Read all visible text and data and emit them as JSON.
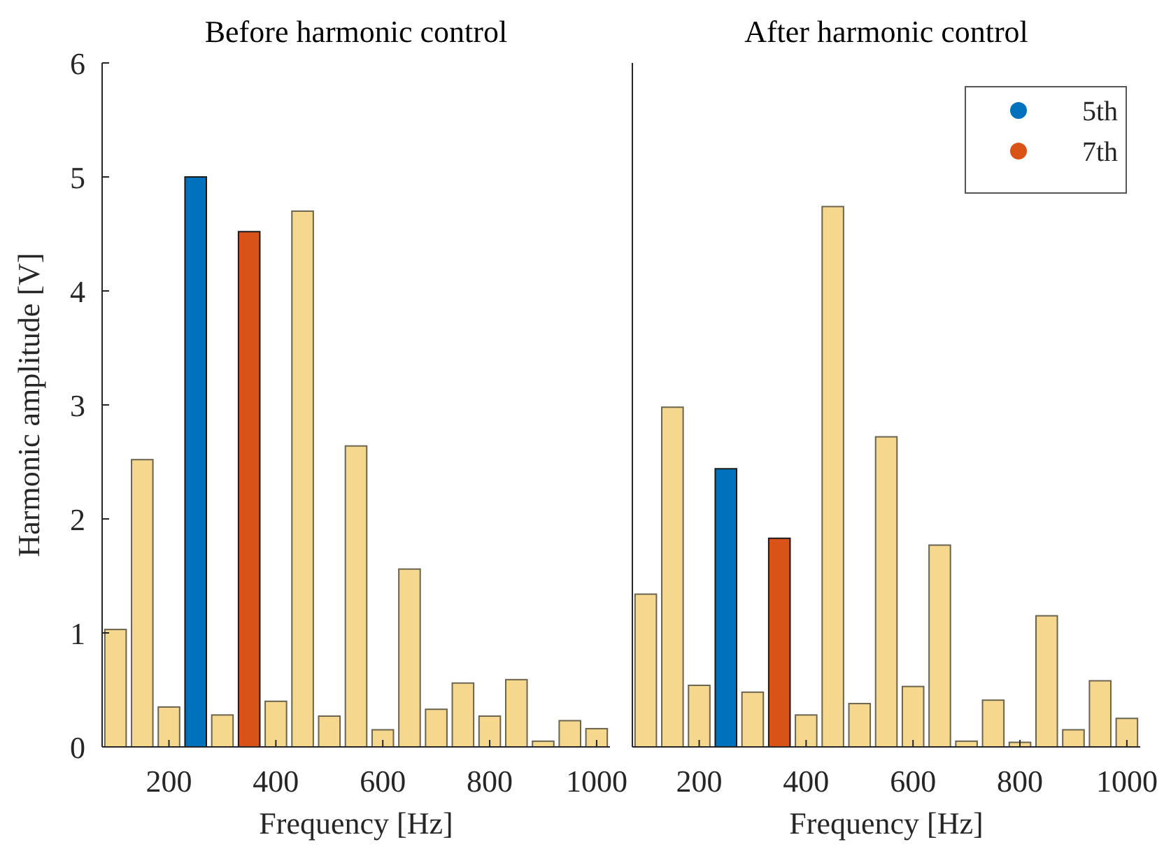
{
  "chart_data": [
    {
      "type": "bar",
      "title": "Before harmonic control",
      "xlabel": "Frequency [Hz]",
      "ylabel": "Harmonic amplitude [V]",
      "x": [
        100,
        150,
        200,
        250,
        300,
        350,
        400,
        450,
        500,
        550,
        600,
        650,
        700,
        750,
        800,
        850,
        900,
        950,
        1000
      ],
      "xlim": [
        75,
        1025
      ],
      "xticks": [
        200,
        400,
        600,
        800,
        1000
      ],
      "ylim": [
        0,
        6
      ],
      "yticks": [
        0,
        1,
        2,
        3,
        4,
        5,
        6
      ],
      "grid": false,
      "legend": false,
      "series": [
        {
          "color": "#f5d88e",
          "values": [
            1.03,
            2.52,
            0.35,
            null,
            0.28,
            null,
            0.4,
            4.7,
            0.27,
            2.64,
            0.15,
            1.56,
            0.33,
            0.56,
            0.27,
            0.59,
            0.05,
            0.23,
            0.16
          ]
        },
        {
          "color": "#0072bd",
          "values": [
            null,
            null,
            null,
            5.0,
            null,
            null,
            null,
            null,
            null,
            null,
            null,
            null,
            null,
            null,
            null,
            null,
            null,
            null,
            null
          ]
        },
        {
          "color": "#d95319",
          "values": [
            null,
            null,
            null,
            null,
            null,
            4.52,
            null,
            null,
            null,
            null,
            null,
            null,
            null,
            null,
            null,
            null,
            null,
            null,
            null
          ]
        }
      ]
    },
    {
      "type": "bar",
      "title": "After harmonic control",
      "xlabel": "Frequency [Hz]",
      "x": [
        100,
        150,
        200,
        250,
        300,
        350,
        400,
        450,
        500,
        550,
        600,
        650,
        700,
        750,
        800,
        850,
        900,
        950,
        1000
      ],
      "xlim": [
        75,
        1025
      ],
      "xticks": [
        200,
        400,
        600,
        800,
        1000
      ],
      "ylim": [
        0,
        6
      ],
      "tick_labels": "x",
      "grid": false,
      "legend": "top right",
      "series": [
        {
          "color": "#f5d88e",
          "values": [
            1.34,
            2.98,
            0.54,
            null,
            0.48,
            null,
            0.28,
            4.74,
            0.38,
            2.72,
            0.53,
            1.77,
            0.05,
            0.41,
            0.04,
            1.15,
            0.15,
            0.58,
            0.25
          ]
        },
        {
          "name": "5th",
          "color": "#0072bd",
          "values": [
            null,
            null,
            null,
            2.44,
            null,
            null,
            null,
            null,
            null,
            null,
            null,
            null,
            null,
            null,
            null,
            null,
            null,
            null,
            null
          ]
        },
        {
          "name": "7th",
          "color": "#d95319",
          "values": [
            null,
            null,
            null,
            null,
            null,
            1.83,
            null,
            null,
            null,
            null,
            null,
            null,
            null,
            null,
            null,
            null,
            null,
            null,
            null
          ]
        }
      ]
    }
  ]
}
